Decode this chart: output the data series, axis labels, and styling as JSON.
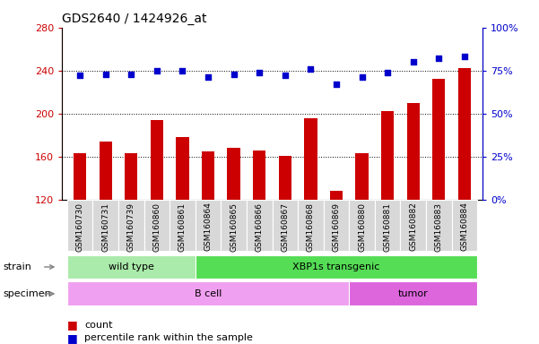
{
  "title": "GDS2640 / 1424926_at",
  "samples": [
    "GSM160730",
    "GSM160731",
    "GSM160739",
    "GSM160860",
    "GSM160861",
    "GSM160864",
    "GSM160865",
    "GSM160866",
    "GSM160867",
    "GSM160868",
    "GSM160869",
    "GSM160880",
    "GSM160881",
    "GSM160882",
    "GSM160883",
    "GSM160884"
  ],
  "counts": [
    163,
    174,
    163,
    194,
    178,
    165,
    168,
    166,
    161,
    196,
    128,
    163,
    202,
    210,
    232,
    242
  ],
  "percentiles": [
    72,
    73,
    73,
    75,
    75,
    71,
    73,
    74,
    72,
    76,
    67,
    71,
    74,
    80,
    82,
    83
  ],
  "ylim_left": [
    120,
    280
  ],
  "ylim_right": [
    0,
    100
  ],
  "yticks_left": [
    120,
    160,
    200,
    240,
    280
  ],
  "ytick_labels_right": [
    "0%",
    "25%",
    "50%",
    "75%",
    "100%"
  ],
  "yticks_right_vals": [
    0,
    25,
    50,
    75,
    100
  ],
  "bar_color": "#cc0000",
  "dot_color": "#0000cc",
  "strain_groups": [
    {
      "label": "wild type",
      "start": 0,
      "end": 5,
      "color": "#aaeaaa"
    },
    {
      "label": "XBP1s transgenic",
      "start": 5,
      "end": 16,
      "color": "#55dd55"
    }
  ],
  "specimen_groups": [
    {
      "label": "B cell",
      "start": 0,
      "end": 11,
      "color": "#f0a0f0"
    },
    {
      "label": "tumor",
      "start": 11,
      "end": 16,
      "color": "#dd66dd"
    }
  ],
  "strain_label": "strain",
  "specimen_label": "specimen",
  "legend_count_label": "count",
  "legend_pct_label": "percentile rank within the sample",
  "tick_bg_color": "#d8d8d8",
  "title_fontsize": 10,
  "bar_width": 0.5
}
